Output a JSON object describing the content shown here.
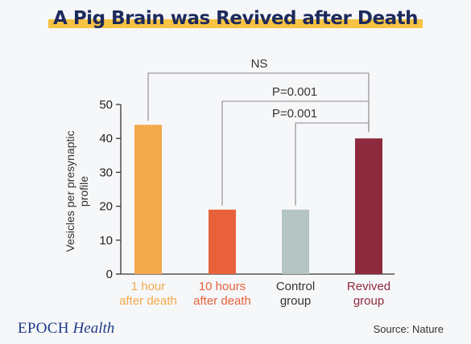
{
  "title": "A Pig Brain was Revived after Death",
  "brand": {
    "part1": "EPOCH",
    "part2": "Health"
  },
  "source": "Source: Nature",
  "chart_data": {
    "type": "bar",
    "categories": [
      [
        "1 hour",
        "after death"
      ],
      [
        "10 hours",
        "after death"
      ],
      [
        "Control",
        "group"
      ],
      [
        "Revived",
        "group"
      ]
    ],
    "values": [
      44,
      19,
      19,
      40
    ],
    "colors": [
      "#f2a94a",
      "#e8613a",
      "#b4c5c2",
      "#8d2a3d"
    ],
    "label_colors": [
      "#f2a94a",
      "#e8613a",
      "#333333",
      "#8d2a3d"
    ],
    "ylabel_lines": [
      "Vesicles per presynaptic",
      "profile"
    ],
    "ylim": [
      0,
      50
    ],
    "yticks": [
      0,
      10,
      20,
      30,
      40,
      50
    ],
    "comparisons": [
      {
        "from": 0,
        "to": 3,
        "label": "NS"
      },
      {
        "from": 1,
        "to": 3,
        "label": "P=0.001"
      },
      {
        "from": 2,
        "to": 3,
        "label": "P=0.001"
      }
    ]
  }
}
